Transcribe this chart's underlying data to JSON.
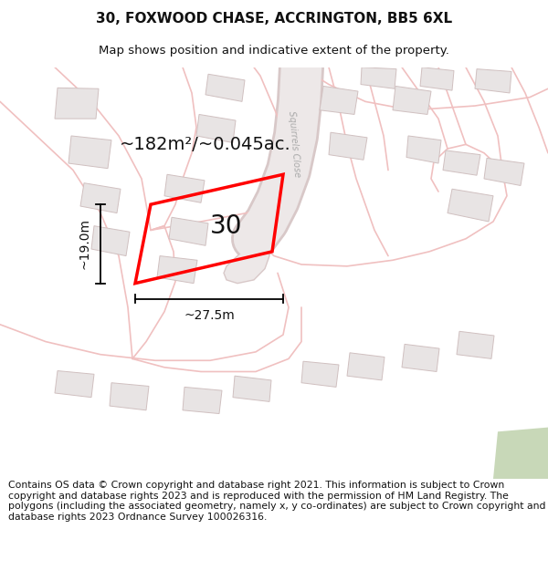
{
  "title_line1": "30, FOXWOOD CHASE, ACCRINGTON, BB5 6XL",
  "title_line2": "Map shows position and indicative extent of the property.",
  "area_label": "~182m²/~0.045ac.",
  "plot_number": "30",
  "dim_width": "~27.5m",
  "dim_height": "~19.0m",
  "footer_text": "Contains OS data © Crown copyright and database right 2021. This information is subject to Crown copyright and database rights 2023 and is reproduced with the permission of HM Land Registry. The polygons (including the associated geometry, namely x, y co-ordinates) are subject to Crown copyright and database rights 2023 Ordnance Survey 100026316.",
  "bg_color": "#ffffff",
  "map_bg": "#ffffff",
  "road_outline_color": "#f0c8c8",
  "road_fill_color": "#f8eded",
  "building_fill": "#e8e4e4",
  "building_edge": "#d8c8c8",
  "plot_edge": "#ff0000",
  "sq_close_fill": "#e0dada",
  "sq_close_edge": "#c8b8b8",
  "title_fontsize": 11,
  "subtitle_fontsize": 9.5,
  "area_fontsize": 14,
  "plot_num_fontsize": 20,
  "dim_fontsize": 10,
  "footer_fontsize": 7.8
}
